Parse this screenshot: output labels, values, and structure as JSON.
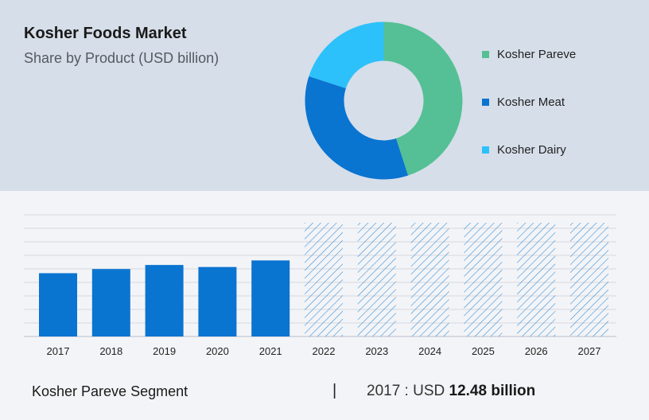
{
  "header": {
    "title": "Kosher Foods Market",
    "subtitle": "Share by Product (USD billion)"
  },
  "colors": {
    "kosher_pareve": "#55c095",
    "kosher_meat": "#0a74d1",
    "kosher_dairy": "#2dc1fb",
    "bar": "#0a74d1",
    "hatch": "#3a8fd6"
  },
  "chart_data": [
    {
      "type": "pie",
      "style": "donut",
      "categories": [
        "Kosher Pareve",
        "Kosher Meat",
        "Kosher Dairy"
      ],
      "values": [
        45,
        35,
        20
      ],
      "colors": [
        "#55c095",
        "#0a74d1",
        "#2dc1fb"
      ],
      "legend_position": "right"
    },
    {
      "type": "bar",
      "categories": [
        "2017",
        "2018",
        "2019",
        "2020",
        "2021",
        "2022",
        "2023",
        "2024",
        "2025",
        "2026",
        "2027"
      ],
      "values": [
        12.48,
        13.3,
        14.1,
        13.7,
        15.0,
        null,
        null,
        null,
        null,
        null,
        null
      ],
      "forecast_categories": [
        "2022",
        "2023",
        "2024",
        "2025",
        "2026",
        "2027"
      ],
      "forecast_style": "hatched",
      "ylim": [
        0,
        24
      ],
      "grid": true
    }
  ],
  "footer": {
    "segment_label": "Kosher Pareve Segment",
    "separator": "|",
    "value_prefix": "2017 : USD",
    "value_bold": "12.48 billion"
  }
}
